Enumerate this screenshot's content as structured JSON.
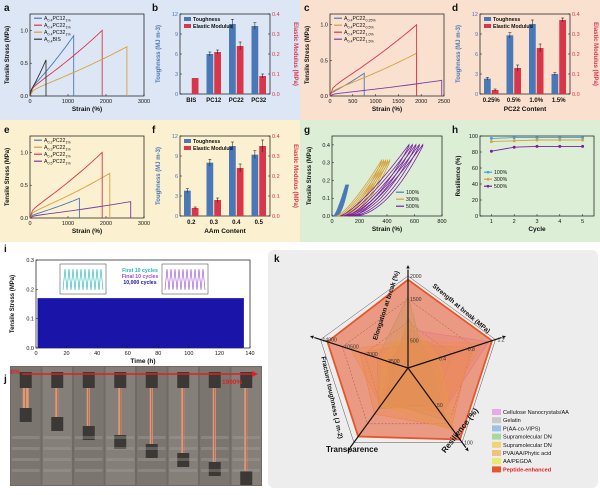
{
  "colors": {
    "blue_bg": "#dde6f4",
    "peach_bg": "#f9e0cf",
    "yellow_bg": "#fbf0cf",
    "green_bg": "#dcefd6",
    "toughness": "#4a78b7",
    "modulus": "#d8364a",
    "photo_bg": "#6f6a66",
    "radar_bg": "#ededed"
  },
  "chart_data": [
    {
      "panel": "a",
      "type": "line",
      "xlabel": "Strain (%)",
      "ylabel": "Tensile Stress (MPa)",
      "xlim": [
        0,
        3000
      ],
      "ylim": [
        0,
        1.25
      ],
      "xticks": [
        "0",
        "1000",
        "2000",
        "3000"
      ],
      "yticks": [
        "0.0",
        "0.5",
        "1.0"
      ],
      "series": [
        {
          "name": "A0.4PC12",
          "sub": "1%",
          "color": "#4a78b7",
          "end": [
            1150,
            0.92
          ]
        },
        {
          "name": "A0.4PC22",
          "sub": "1%",
          "color": "#d8364a",
          "end": [
            1900,
            1.0
          ]
        },
        {
          "name": "A0.4PC32",
          "sub": "1%",
          "color": "#d6a13a",
          "end": [
            2550,
            0.75
          ]
        },
        {
          "name": "A0.4BIS",
          "sub": "",
          "color": "#333333",
          "end": [
            420,
            0.55
          ]
        }
      ]
    },
    {
      "panel": "b",
      "type": "bar",
      "categories": [
        "BIS",
        "PC12",
        "PC22",
        "PC32"
      ],
      "xlabel": "",
      "ylabel": "Toughness (MJ m-3)",
      "ylabel2": "Elastic Modulus (MPa)",
      "ylim": [
        0,
        12
      ],
      "ylim2": [
        0,
        0.4
      ],
      "yticks": [
        "0",
        "3",
        "6",
        "9",
        "12"
      ],
      "yticks2": [
        "0.0",
        "0.1",
        "0.2",
        "0.3",
        "0.4"
      ],
      "series": [
        {
          "name": "Toughness",
          "values": [
            0.1,
            6.0,
            10.5,
            10.2
          ],
          "err": [
            0,
            0.3,
            0.7,
            0.5
          ]
        },
        {
          "name": "Elastic Modulus",
          "values": [
            0.08,
            0.21,
            0.24,
            0.09
          ],
          "err": [
            0,
            0.01,
            0.02,
            0.01
          ]
        }
      ]
    },
    {
      "panel": "c",
      "type": "line",
      "xlabel": "Strain (%)",
      "ylabel": "Tensile Stress (MPa)",
      "xlim": [
        0,
        2500
      ],
      "ylim": [
        0,
        1.15
      ],
      "xticks": [
        "0",
        "500",
        "1000",
        "1500",
        "2000",
        "2500"
      ],
      "yticks": [
        "0.0",
        "0.5",
        "1.0"
      ],
      "series": [
        {
          "name": "A0.4PC22",
          "sub": "0.25%",
          "color": "#4a78b7",
          "end": [
            750,
            0.32
          ]
        },
        {
          "name": "A0.4PC22",
          "sub": "0.5%",
          "color": "#d6a13a",
          "end": [
            1900,
            0.6
          ]
        },
        {
          "name": "A0.4PC22",
          "sub": "1.0%",
          "color": "#d8364a",
          "end": [
            1900,
            1.0
          ]
        },
        {
          "name": "A0.4PC22",
          "sub": "1.5%",
          "color": "#7a3fa0",
          "end": [
            2450,
            0.22
          ]
        }
      ]
    },
    {
      "panel": "d",
      "type": "bar",
      "categories": [
        "0.25%",
        "0.5%",
        "1.0%",
        "1.5%"
      ],
      "xlabel": "PC22 Content",
      "ylabel": "Toughness (MJ m-3)",
      "ylabel2": "Elastic Modulus (MPa)",
      "ylim": [
        0,
        12
      ],
      "ylim2": [
        0,
        0.4
      ],
      "yticks": [
        "0",
        "3",
        "6",
        "9",
        "12"
      ],
      "yticks2": [
        "0.0",
        "0.1",
        "0.2",
        "0.3",
        "0.4"
      ],
      "series": [
        {
          "name": "Toughness",
          "values": [
            2.3,
            8.8,
            10.5,
            3.0
          ],
          "err": [
            0.2,
            0.4,
            0.6,
            0.2
          ]
        },
        {
          "name": "Elastic Modulus",
          "values": [
            0.02,
            0.13,
            0.23,
            0.37
          ],
          "err": [
            0.005,
            0.015,
            0.02,
            0.01
          ]
        }
      ]
    },
    {
      "panel": "e",
      "type": "line",
      "xlabel": "Strain (%)",
      "ylabel": "Tensile Stress (MPa)",
      "xlim": [
        0,
        3000
      ],
      "ylim": [
        0,
        1.25
      ],
      "xticks": [
        "0",
        "1000",
        "2000",
        "3000"
      ],
      "yticks": [
        "0.0",
        "0.5",
        "1.0"
      ],
      "series": [
        {
          "name": "A0.2PC22",
          "sub": "1%",
          "color": "#4a78b7",
          "end": [
            1300,
            0.3
          ]
        },
        {
          "name": "A0.3PC22",
          "sub": "1%",
          "color": "#d6a13a",
          "end": [
            2100,
            0.68
          ]
        },
        {
          "name": "A0.4PC22",
          "sub": "1%",
          "color": "#d8364a",
          "end": [
            1900,
            1.0
          ]
        },
        {
          "name": "A0.5PC22",
          "sub": "1%",
          "color": "#7a3fa0",
          "end": [
            2650,
            0.25
          ]
        }
      ]
    },
    {
      "panel": "f",
      "type": "bar",
      "categories": [
        "0.2",
        "0.3",
        "0.4",
        "0.5"
      ],
      "xlabel": "AAm Content",
      "ylabel": "Toughness (MJ m-3)",
      "ylabel2": "Elastic Modulus (MPa)",
      "ylim": [
        0,
        12
      ],
      "ylim2": [
        0,
        0.4
      ],
      "yticks": [
        "0",
        "3",
        "6",
        "9",
        "12"
      ],
      "yticks2": [
        "0.0",
        "0.1",
        "0.2",
        "0.3",
        "0.4"
      ],
      "series": [
        {
          "name": "Toughness",
          "values": [
            3.8,
            8.0,
            10.5,
            9.2
          ],
          "err": [
            0.3,
            0.5,
            0.6,
            0.6
          ]
        },
        {
          "name": "Elastic Modulus",
          "values": [
            0.04,
            0.08,
            0.24,
            0.35
          ],
          "err": [
            0.005,
            0.01,
            0.02,
            0.03
          ]
        }
      ]
    },
    {
      "panel": "g",
      "type": "line",
      "xlabel": "Strain (%)",
      "ylabel": "Tensile Stress (MPa)",
      "xlim": [
        0,
        800
      ],
      "ylim": [
        0,
        0.45
      ],
      "xticks": [
        "0",
        "200",
        "400",
        "600",
        "800"
      ],
      "yticks": [
        "0.0",
        "0.1",
        "0.2",
        "0.3",
        "0.4"
      ],
      "series": [
        {
          "name": "100%",
          "color": "#4a78b7",
          "max_strain": 100,
          "max_stress": 0.18
        },
        {
          "name": "300%",
          "color": "#d6a13a",
          "max_strain": 300,
          "max_stress": 0.32
        },
        {
          "name": "500%",
          "color": "#7a1fa0",
          "max_strain": 500,
          "max_stress": 0.41
        }
      ]
    },
    {
      "panel": "h",
      "type": "line",
      "xlabel": "Cycle",
      "ylabel": "Resilience (%)",
      "x": [
        1,
        2,
        3,
        4,
        5
      ],
      "xlim": [
        0.5,
        5.5
      ],
      "ylim": [
        0,
        100
      ],
      "xticks": [
        "1",
        "2",
        "3",
        "4",
        "5"
      ],
      "yticks": [
        "0",
        "20",
        "40",
        "60",
        "80",
        "100"
      ],
      "series": [
        {
          "name": "100%",
          "color": "#4a9fd8",
          "values": [
            97,
            98,
            98,
            98,
            98
          ]
        },
        {
          "name": "300%",
          "color": "#d6a13a",
          "values": [
            93,
            94,
            95,
            95,
            95
          ]
        },
        {
          "name": "500%",
          "color": "#7a1fa0",
          "values": [
            81,
            86,
            87,
            87,
            87
          ]
        }
      ]
    },
    {
      "panel": "i",
      "type": "area",
      "xlabel": "Time (h)",
      "ylabel": "Tensile Stress (MPa)",
      "xlim": [
        0,
        140
      ],
      "ylim": [
        0,
        0.3
      ],
      "xticks": [
        "0",
        "20",
        "40",
        "60",
        "80",
        "100",
        "120",
        "140"
      ],
      "yticks": [
        "0.0",
        "0.1",
        "0.2",
        "0.3"
      ],
      "band": [
        0.0,
        0.17
      ],
      "legend": [
        "First 10 cycles",
        "Final 10 cycles",
        "10,000 cycles"
      ]
    },
    {
      "panel": "k",
      "type": "radar",
      "axes": [
        "Elongation at break (%)",
        "Strength at break (MPa)",
        "Resilience (%)",
        "Transparence",
        "Fracture toughness (J m-2)"
      ],
      "axis_ticks": {
        "elongation": [
          "500",
          "1500",
          "2000"
        ],
        "strength": [
          "0.4",
          "0.8",
          "1.2"
        ],
        "resilience": [
          "50",
          "100"
        ],
        "fracture": [
          "3500",
          "7000",
          "10500",
          "14000"
        ]
      },
      "series": [
        {
          "name": "Cellulose Nanocrystals/AA",
          "color": "#e9a8ea",
          "values": [
            0.42,
            0.92,
            0.62,
            0.35,
            0.2
          ]
        },
        {
          "name": "Gelatin",
          "color": "#c9c9c9",
          "values": [
            0.35,
            0.55,
            0.45,
            0.55,
            0.2
          ]
        },
        {
          "name": "P(AA-co-VIPS)",
          "color": "#9bc1e6",
          "values": [
            0.55,
            0.25,
            0.7,
            0.45,
            0.15
          ]
        },
        {
          "name": "Supramolecular DN",
          "color": "#a8d89c",
          "values": [
            0.78,
            0.2,
            0.5,
            0.55,
            0.35
          ]
        },
        {
          "name": "Supramolecular DN",
          "color": "#f1d27a",
          "values": [
            0.3,
            0.85,
            0.6,
            0.5,
            0.65
          ]
        },
        {
          "name": "PVA/AA/Phytic acid",
          "color": "#f3c07f",
          "values": [
            0.25,
            0.72,
            0.8,
            0.62,
            0.55
          ]
        },
        {
          "name": "AA/PEGDA",
          "color": "#e8ea6a",
          "values": [
            0.5,
            0.35,
            0.85,
            0.5,
            0.3
          ]
        },
        {
          "name": "Peptide-enhanced",
          "color": "#e8552a",
          "values": [
            0.96,
            0.96,
            0.96,
            0.92,
            0.92
          ]
        }
      ]
    }
  ],
  "labels": {
    "panel_letters": [
      "a",
      "b",
      "c",
      "d",
      "e",
      "f",
      "g",
      "h",
      "i",
      "j",
      "k"
    ],
    "legend_toughness": "Toughness",
    "legend_modulus": "Elastic Modulus",
    "photo_strain_start": "0%",
    "photo_strain_end": "1900%",
    "radar_transparence": "Transparence"
  }
}
